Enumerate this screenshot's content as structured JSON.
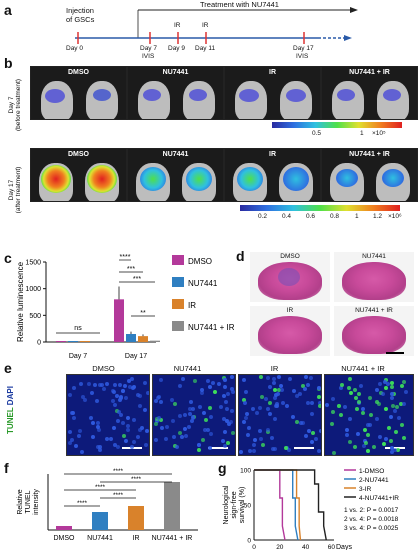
{
  "panels": {
    "a": "a",
    "b": "b",
    "c": "c",
    "d": "d",
    "e": "e",
    "f": "f",
    "g": "g"
  },
  "timeline": {
    "injection": "Injection\nof GSCs",
    "treatment": "Treatment with NU7441",
    "days": [
      {
        "label": "Day 0",
        "sub": ""
      },
      {
        "label": "Day 7",
        "sub": "IVIS"
      },
      {
        "label": "Day 9",
        "sub": ""
      },
      {
        "label": "Day 11",
        "sub": ""
      },
      {
        "label": "Day 17",
        "sub": "IVIS"
      }
    ],
    "ir_labels": [
      "IR",
      "IR"
    ]
  },
  "imaging": {
    "groups": [
      "DMSO",
      "NU7441",
      "IR",
      "NU7441 + IR"
    ],
    "row1_label": "Day 7\n(before treatment)",
    "row2_label": "Day 17\n(after treatment)",
    "colorbar1": {
      "ticks": [
        "0.5",
        "1"
      ],
      "unit": "×10⁵"
    },
    "colorbar2": {
      "ticks": [
        "0.2",
        "0.4",
        "0.6",
        "0.8",
        "1",
        "1.2"
      ],
      "unit": "×10⁶"
    }
  },
  "histology": {
    "labels": [
      "DMSO",
      "NU7441",
      "IR",
      "NU7441 + IR"
    ]
  },
  "tunel": {
    "side_label_green": "TUNEL",
    "side_label_blue": "DAPI",
    "labels": [
      "DMSO",
      "NU7441",
      "IR",
      "NU7441 + IR"
    ]
  },
  "chart_data": [
    {
      "panel": "c",
      "type": "bar",
      "ylabel": "Relative luminescence",
      "ylim": [
        0,
        1500
      ],
      "yticks": [
        "0",
        "500",
        "1000",
        "1500"
      ],
      "categories": [
        "Day 7",
        "Day 17"
      ],
      "series": [
        {
          "name": "DMSO",
          "color": "#b3399a",
          "values": [
            1,
            800
          ]
        },
        {
          "name": "NU7441",
          "color": "#2f7fc1",
          "values": [
            1,
            150
          ]
        },
        {
          "name": "IR",
          "color": "#d9822b",
          "values": [
            1,
            110
          ]
        },
        {
          "name": "NU7441 + IR",
          "color": "#8a8a8a",
          "values": [
            1,
            25
          ]
        }
      ],
      "annotations": [
        "ns",
        "****",
        "***",
        "***",
        "**"
      ]
    },
    {
      "panel": "f",
      "type": "bar",
      "ylabel": "Relative\nTUNEL\nintensity",
      "categories": [
        "DMSO",
        "NU7441",
        "IR",
        "NU7441 + IR"
      ],
      "values": [
        1,
        4.5,
        6,
        12
      ],
      "colors": [
        "#b3399a",
        "#2f7fc1",
        "#d9822b",
        "#8a8a8a"
      ],
      "annotations": [
        "****",
        "****",
        "****",
        "****",
        "****"
      ]
    },
    {
      "panel": "g",
      "type": "line",
      "ylabel": "Neurological\nsign-free\nsurvival (%)",
      "xlabel": "Days",
      "xticks": [
        "0",
        "20",
        "40",
        "60"
      ],
      "yticks": [
        "0",
        "50",
        "100"
      ],
      "xlim": [
        0,
        62
      ],
      "ylim": [
        0,
        100
      ],
      "series": [
        {
          "name": "1-DMSO",
          "color": "#b3399a",
          "x": [
            0,
            20,
            20,
            22,
            22,
            24
          ],
          "y": [
            100,
            100,
            60,
            60,
            20,
            0
          ]
        },
        {
          "name": "2-NU7441",
          "color": "#2f7fc1",
          "x": [
            0,
            30,
            30,
            32,
            32,
            34
          ],
          "y": [
            100,
            100,
            60,
            60,
            20,
            0
          ]
        },
        {
          "name": "3-IR",
          "color": "#d9822b",
          "x": [
            0,
            33,
            33,
            35,
            35,
            36
          ],
          "y": [
            100,
            100,
            60,
            60,
            20,
            0
          ]
        },
        {
          "name": "4-NU7441+IR",
          "color": "#222222",
          "x": [
            0,
            47,
            47,
            50,
            50,
            54,
            54,
            56
          ],
          "y": [
            100,
            100,
            80,
            80,
            40,
            40,
            20,
            0
          ]
        }
      ],
      "stats": [
        "1 vs. 2: P = 0.0017",
        "2 vs. 4: P = 0.0018",
        "3 vs. 4: P = 0.0025"
      ]
    }
  ]
}
